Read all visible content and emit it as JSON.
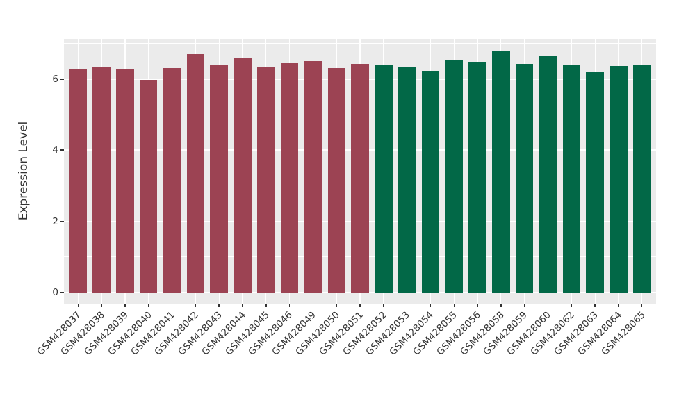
{
  "chart_data": {
    "type": "bar",
    "title": "",
    "xlabel": "",
    "ylabel": "Expression Level",
    "ylim": [
      -0.32,
      7.12
    ],
    "yticks": [
      0,
      2,
      4,
      6
    ],
    "yticks_minor": [
      1,
      3,
      5,
      7
    ],
    "grid": true,
    "legend": "none",
    "categories": [
      "GSM428037",
      "GSM428038",
      "GSM428039",
      "GSM428040",
      "GSM428041",
      "GSM428042",
      "GSM428043",
      "GSM428044",
      "GSM428045",
      "GSM428046",
      "GSM428049",
      "GSM428050",
      "GSM428051",
      "GSM428052",
      "GSM428053",
      "GSM428054",
      "GSM428055",
      "GSM428056",
      "GSM428058",
      "GSM428059",
      "GSM428060",
      "GSM428062",
      "GSM428063",
      "GSM428064",
      "GSM428065"
    ],
    "values": [
      6.28,
      6.33,
      6.28,
      5.98,
      6.31,
      6.69,
      6.41,
      6.58,
      6.35,
      6.47,
      6.5,
      6.3,
      6.43,
      6.38,
      6.35,
      6.24,
      6.55,
      6.48,
      6.78,
      6.43,
      6.64,
      6.41,
      6.22,
      6.37,
      6.39
    ],
    "groups": [
      "group-1",
      "group-1",
      "group-1",
      "group-1",
      "group-1",
      "group-1",
      "group-1",
      "group-1",
      "group-1",
      "group-1",
      "group-1",
      "group-1",
      "group-1",
      "group-2",
      "group-2",
      "group-2",
      "group-2",
      "group-2",
      "group-2",
      "group-2",
      "group-2",
      "group-2",
      "group-2",
      "group-2",
      "group-2"
    ],
    "group_colors": {
      "group-1": "#9C4353",
      "group-2": "#026847"
    },
    "panel_background": "#EBEBEB",
    "grid_color": "#FFFFFF",
    "axis_text_color": "#333333",
    "tick_color": "#333333",
    "figure_background": "#FFFFFF"
  }
}
